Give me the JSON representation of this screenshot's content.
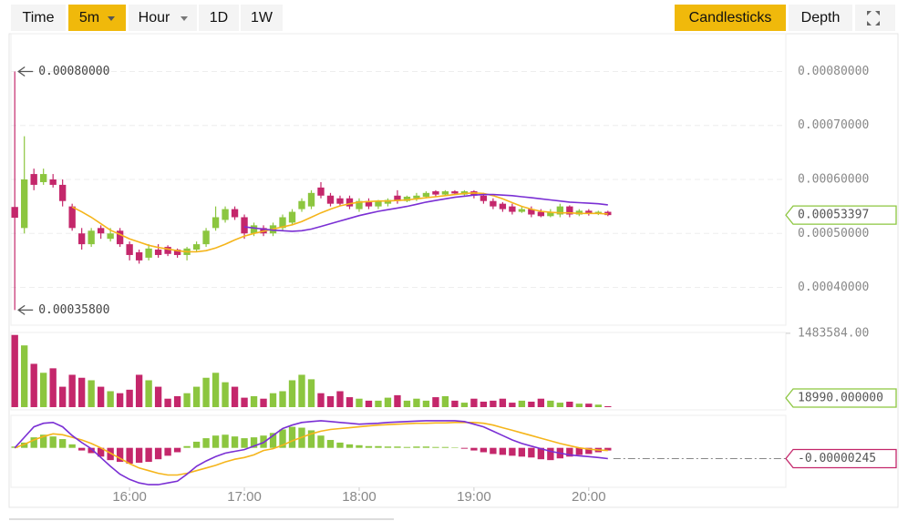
{
  "toolbar": {
    "intervals": [
      "Time",
      "5m",
      "Hour",
      "1D",
      "1W"
    ],
    "views": [
      "Candlesticks",
      "Depth"
    ]
  },
  "chart_data": {
    "type": "candlestick",
    "x": [
      900,
      905,
      910,
      915,
      920,
      925,
      930,
      935,
      940,
      945,
      950,
      955,
      960,
      965,
      970,
      975,
      980,
      985,
      990,
      995,
      1000,
      1005,
      1010,
      1015,
      1020,
      1025,
      1030,
      1035,
      1040,
      1045,
      1050,
      1055,
      1060,
      1065,
      1070,
      1075,
      1080,
      1085,
      1090,
      1095,
      1100,
      1105,
      1110,
      1115,
      1120,
      1125,
      1130,
      1135,
      1140,
      1145,
      1150,
      1155,
      1160,
      1165,
      1170,
      1175,
      1180,
      1185,
      1190,
      1195,
      1200,
      1205,
      1210
    ],
    "xlim": [
      898,
      1303
    ],
    "xticks": [
      {
        "value": 960,
        "label": "16:00"
      },
      {
        "value": 1020,
        "label": "17:00"
      },
      {
        "value": 1080,
        "label": "18:00"
      },
      {
        "value": 1140,
        "label": "19:00"
      },
      {
        "value": 1200,
        "label": "20:00"
      }
    ],
    "open": [
      0.000549,
      0.00051,
      0.00061,
      0.000595,
      0.0006,
      0.00059,
      0.00055,
      0.0005,
      0.00048,
      0.00051,
      0.00049,
      0.000505,
      0.00048,
      0.000465,
      0.000455,
      0.00047,
      0.000475,
      0.00047,
      0.00046,
      0.00047,
      0.00048,
      0.00051,
      0.000525,
      0.000545,
      0.00053,
      0.0005,
      0.00051,
      0.0005,
      0.00051,
      0.00052,
      0.000545,
      0.00055,
      0.000585,
      0.00057,
      0.000565,
      0.000565,
      0.000545,
      0.00056,
      0.00055,
      0.000555,
      0.00057,
      0.00056,
      0.000565,
      0.000568,
      0.000578,
      0.000572,
      0.000578,
      0.000572,
      0.000578,
      0.00057,
      0.00056,
      0.000555,
      0.00055,
      0.00054,
      0.000545,
      0.00054,
      0.000532,
      0.000535,
      0.00055,
      0.000535,
      0.000542,
      0.000536,
      0.00054
    ],
    "high": [
      0.0008,
      0.00068,
      0.00062,
      0.00062,
      0.00061,
      0.0006,
      0.000555,
      0.00051,
      0.00051,
      0.000515,
      0.00051,
      0.00051,
      0.000485,
      0.00047,
      0.00048,
      0.00048,
      0.000478,
      0.000472,
      0.000475,
      0.000485,
      0.00051,
      0.00055,
      0.00055,
      0.00055,
      0.000535,
      0.00052,
      0.000515,
      0.00052,
      0.000535,
      0.000545,
      0.000565,
      0.00058,
      0.000595,
      0.000575,
      0.00057,
      0.00057,
      0.000565,
      0.000565,
      0.000562,
      0.000565,
      0.00058,
      0.00057,
      0.000575,
      0.000578,
      0.00058,
      0.00058,
      0.00058,
      0.00058,
      0.00058,
      0.000575,
      0.000565,
      0.000558,
      0.000555,
      0.00055,
      0.00055,
      0.000545,
      0.000545,
      0.000555,
      0.000552,
      0.000545,
      0.000545,
      0.000542,
      0.000542
    ],
    "low": [
      0.000358,
      0.0005,
      0.00058,
      0.00059,
      0.000585,
      0.00055,
      0.000505,
      0.00047,
      0.000475,
      0.00049,
      0.000485,
      0.000475,
      0.00045,
      0.000444,
      0.00045,
      0.000455,
      0.000458,
      0.000455,
      0.00045,
      0.000465,
      0.000475,
      0.000505,
      0.00052,
      0.000525,
      0.00049,
      0.000495,
      0.000495,
      0.000495,
      0.000505,
      0.000515,
      0.00054,
      0.000545,
      0.000565,
      0.00055,
      0.00055,
      0.000545,
      0.00054,
      0.000545,
      0.000545,
      0.00055,
      0.000555,
      0.000558,
      0.00056,
      0.000565,
      0.000568,
      0.00057,
      0.000572,
      0.00057,
      0.000565,
      0.000555,
      0.000545,
      0.00054,
      0.000535,
      0.000538,
      0.00053,
      0.00053,
      0.00053,
      0.00053,
      0.00053,
      0.000532,
      0.000533,
      0.000534,
      0.000532
    ],
    "close": [
      0.000529,
      0.0006,
      0.00059,
      0.00061,
      0.00059,
      0.00056,
      0.00051,
      0.00048,
      0.000505,
      0.0005,
      0.0005,
      0.00048,
      0.00046,
      0.00045,
      0.000472,
      0.00046,
      0.000462,
      0.00046,
      0.000472,
      0.00048,
      0.000505,
      0.00053,
      0.000545,
      0.00053,
      0.0005,
      0.000515,
      0.0005,
      0.000515,
      0.00053,
      0.00054,
      0.00056,
      0.000575,
      0.00057,
      0.000555,
      0.000555,
      0.00055,
      0.00056,
      0.00055,
      0.00056,
      0.000562,
      0.00056,
      0.000568,
      0.00057,
      0.000575,
      0.000572,
      0.000578,
      0.000574,
      0.000578,
      0.00057,
      0.00056,
      0.00055,
      0.000545,
      0.00054,
      0.000545,
      0.000535,
      0.000532,
      0.00054,
      0.00055,
      0.000535,
      0.000542,
      0.000536,
      0.00054,
      0.00053397
    ],
    "ylim": [
      0.00033,
      0.00087
    ],
    "yticks": [
      {
        "value": 0.0008,
        "label": "0.00080000"
      },
      {
        "value": 0.0007,
        "label": "0.00070000"
      },
      {
        "value": 0.0006,
        "label": "0.00060000"
      },
      {
        "value": 0.0005,
        "label": "0.00050000"
      },
      {
        "value": 0.0004,
        "label": "0.00040000"
      }
    ],
    "grid": true,
    "up_color": "#8cc63f",
    "down_color": "#c4276b",
    "annotations": [
      {
        "value": 0.0008,
        "label": "0.00080000"
      },
      {
        "value": 0.000358,
        "label": "0.00035800"
      }
    ],
    "moving_averages": [
      {
        "color": "#f5b51b",
        "values": [
          null,
          null,
          null,
          null,
          null,
          null,
          0.000549,
          0.00054,
          0.00053,
          0.000518,
          0.000506,
          0.000498,
          0.00049,
          0.000484,
          0.000478,
          0.000474,
          0.000471,
          0.000468,
          0.000466,
          0.000466,
          0.000468,
          0.000473,
          0.00048,
          0.000488,
          0.000495,
          0.0005,
          0.000504,
          0.000508,
          0.000512,
          0.000516,
          0.000522,
          0.00053,
          0.000538,
          0.000545,
          0.000551,
          0.000555,
          0.000558,
          0.000559,
          0.00056,
          0.00056,
          0.000561,
          0.000562,
          0.000564,
          0.000566,
          0.000568,
          0.00057,
          0.000572,
          0.000574,
          0.000575,
          0.000574,
          0.00057,
          0.000564,
          0.000557,
          0.00055,
          0.000545,
          0.000541,
          0.000539,
          0.000538,
          0.000538,
          0.000537,
          0.000537,
          0.000537,
          0.000536
        ]
      },
      {
        "color": "#7a2fd4",
        "values": [
          null,
          null,
          null,
          null,
          null,
          null,
          null,
          null,
          null,
          null,
          null,
          null,
          null,
          null,
          null,
          null,
          null,
          null,
          null,
          null,
          null,
          null,
          null,
          null,
          0.000512,
          0.00051,
          0.000508,
          0.000506,
          0.000505,
          0.000504,
          0.000505,
          0.000508,
          0.000513,
          0.000518,
          0.000523,
          0.000528,
          0.000533,
          0.000537,
          0.000541,
          0.000544,
          0.000547,
          0.00055,
          0.000554,
          0.000558,
          0.000561,
          0.000564,
          0.000567,
          0.000569,
          0.000571,
          0.000572,
          0.000572,
          0.000571,
          0.00057,
          0.000568,
          0.000566,
          0.000564,
          0.000562,
          0.00056,
          0.000558,
          0.000557,
          0.000556,
          0.000555,
          0.000553
        ]
      }
    ],
    "volume": {
      "values": [
        1450000,
        1240000,
        870000,
        690000,
        780000,
        410000,
        650000,
        590000,
        540000,
        410000,
        320000,
        280000,
        350000,
        650000,
        540000,
        410000,
        170000,
        220000,
        280000,
        410000,
        590000,
        690000,
        500000,
        410000,
        190000,
        220000,
        170000,
        280000,
        320000,
        540000,
        650000,
        560000,
        280000,
        220000,
        320000,
        200000,
        170000,
        130000,
        130000,
        190000,
        240000,
        130000,
        170000,
        130000,
        200000,
        220000,
        130000,
        90000,
        170000,
        110000,
        130000,
        170000,
        90000,
        130000,
        110000,
        170000,
        130000,
        90000,
        110000,
        70000,
        70000,
        50000,
        18990
      ],
      "ylim": [
        0,
        1500000
      ],
      "yticks": [
        {
          "value": 1483584,
          "label": "1483584.00"
        }
      ],
      "last_label": "18990.000000"
    },
    "macd": {
      "ylim": [
        -9e-06,
        7e-06
      ],
      "dif_color": "#7a2fd4",
      "dea_color": "#f5b51b",
      "hist": [
        3e-07,
        1.2e-06,
        2.4e-06,
        3e-06,
        2.6e-06,
        2e-06,
        8e-07,
        -6e-07,
        -1.2e-06,
        -2e-06,
        -2.8e-06,
        -3.2e-06,
        -3.6e-06,
        -3.4e-06,
        -3.2e-06,
        -2.6e-06,
        -1.8e-06,
        -1e-06,
        4e-07,
        1.4e-06,
        2.2e-06,
        2.8e-06,
        3e-06,
        2.6e-06,
        2.2e-06,
        2.4e-06,
        2.8e-06,
        3.4e-06,
        4.2e-06,
        4.8e-06,
        4.6e-06,
        4e-06,
        2.8e-06,
        1.8e-06,
        1.2e-06,
        8e-07,
        6e-07,
        4e-07,
        4e-07,
        3e-07,
        3e-07,
        2e-07,
        3e-07,
        3e-07,
        2e-07,
        2e-07,
        1e-07,
        -2e-07,
        -6e-07,
        -1e-06,
        -1.4e-06,
        -1.6e-06,
        -1.8e-06,
        -2e-06,
        -2.2e-06,
        -2.6e-06,
        -2.8e-06,
        -2.4e-06,
        -2e-06,
        -1.6e-06,
        -1.4e-06,
        -1e-06,
        -6e-07
      ],
      "dif": [
        0,
        2.4e-06,
        4.8e-06,
        5.6e-06,
        5.8e-06,
        4.8e-06,
        2.8e-06,
        1.2e-06,
        -2e-07,
        -2.2e-06,
        -4.2e-06,
        -6e-06,
        -7.2e-06,
        -8e-06,
        -8.4e-06,
        -8.4e-06,
        -8e-06,
        -7.6e-06,
        -6e-06,
        -4.2e-06,
        -3e-06,
        -2e-06,
        -1.2e-06,
        -8e-07,
        -4e-07,
        4e-07,
        1.2e-06,
        2.8e-06,
        4.4e-06,
        5.2e-06,
        5.8e-06,
        6e-06,
        6.2e-06,
        6e-06,
        5.8e-06,
        5.6e-06,
        5.4e-06,
        5.5e-06,
        5.6e-06,
        5.8e-06,
        5.9e-06,
        6e-06,
        6.1e-06,
        6.2e-06,
        6.2e-06,
        6.2e-06,
        6.2e-06,
        6e-06,
        5.4e-06,
        4.8e-06,
        3.8e-06,
        2.8e-06,
        1.8e-06,
        1e-06,
        4e-07,
        -2e-07,
        -8e-07,
        -1.2e-06,
        -1.6e-06,
        -1.8e-06,
        -2e-06,
        -2.2e-06,
        -2.45e-06
      ],
      "dea": [
        0,
        8e-07,
        1.8e-06,
        2.6e-06,
        3.2e-06,
        3e-06,
        2.4e-06,
        1.8e-06,
        1e-06,
        0,
        -1.2e-06,
        -2.4e-06,
        -3.6e-06,
        -4.6e-06,
        -5.2e-06,
        -5.8e-06,
        -6.2e-06,
        -6.2e-06,
        -5.8e-06,
        -5.2e-06,
        -4.6e-06,
        -4e-06,
        -3.2e-06,
        -2.6e-06,
        -2.2e-06,
        -1.6e-06,
        -6e-07,
        -2e-07,
        6e-07,
        1.6e-06,
        2.4e-06,
        3.2e-06,
        3.8e-06,
        4.2e-06,
        4.4e-06,
        4.6e-06,
        4.8e-06,
        5e-06,
        5.2e-06,
        5.3e-06,
        5.4e-06,
        5.5e-06,
        5.6e-06,
        5.6e-06,
        5.7e-06,
        5.7e-06,
        5.8e-06,
        5.8e-06,
        5.8e-06,
        5.6e-06,
        5.2e-06,
        4.6e-06,
        4e-06,
        3.4e-06,
        2.8e-06,
        2.2e-06,
        1.6e-06,
        1e-06,
        5e-07,
        0,
        -3e-07,
        -5e-07,
        -6e-07
      ]
    }
  }
}
